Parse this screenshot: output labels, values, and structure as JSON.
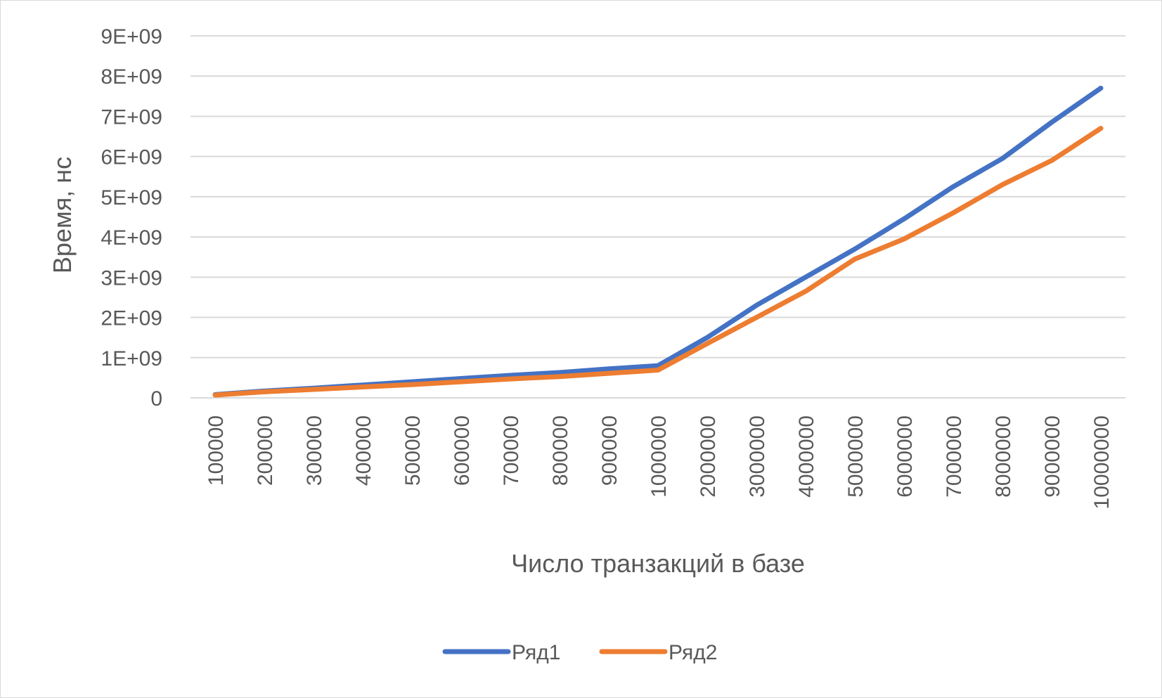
{
  "chart_data": {
    "type": "line",
    "title": "",
    "xlabel": "Число транзакций в базе",
    "ylabel": "Время, нс",
    "categories": [
      "100000",
      "200000",
      "300000",
      "400000",
      "500000",
      "600000",
      "700000",
      "800000",
      "900000",
      "1000000",
      "2000000",
      "3000000",
      "4000000",
      "5000000",
      "6000000",
      "7000000",
      "8000000",
      "9000000",
      "10000000"
    ],
    "y_ticks": [
      "0",
      "1E+09",
      "2E+09",
      "3E+09",
      "4E+09",
      "5E+09",
      "6E+09",
      "7E+09",
      "8E+09",
      "9E+09"
    ],
    "ylim": [
      0,
      9000000000
    ],
    "grid": true,
    "legend_position": "bottom",
    "series": [
      {
        "name": "Ряд1",
        "color": "#4472c4",
        "values": [
          80000000,
          170000000,
          240000000,
          320000000,
          400000000,
          480000000,
          560000000,
          630000000,
          720000000,
          800000000,
          1500000000,
          2300000000,
          3000000000,
          3700000000,
          4450000000,
          5250000000,
          5950000000,
          6850000000,
          7700000000
        ]
      },
      {
        "name": "Ряд2",
        "color": "#ed7d31",
        "values": [
          70000000,
          150000000,
          210000000,
          270000000,
          330000000,
          400000000,
          470000000,
          530000000,
          610000000,
          690000000,
          1350000000,
          2000000000,
          2650000000,
          3450000000,
          3950000000,
          4600000000,
          5300000000,
          5900000000,
          6700000000
        ]
      }
    ]
  }
}
